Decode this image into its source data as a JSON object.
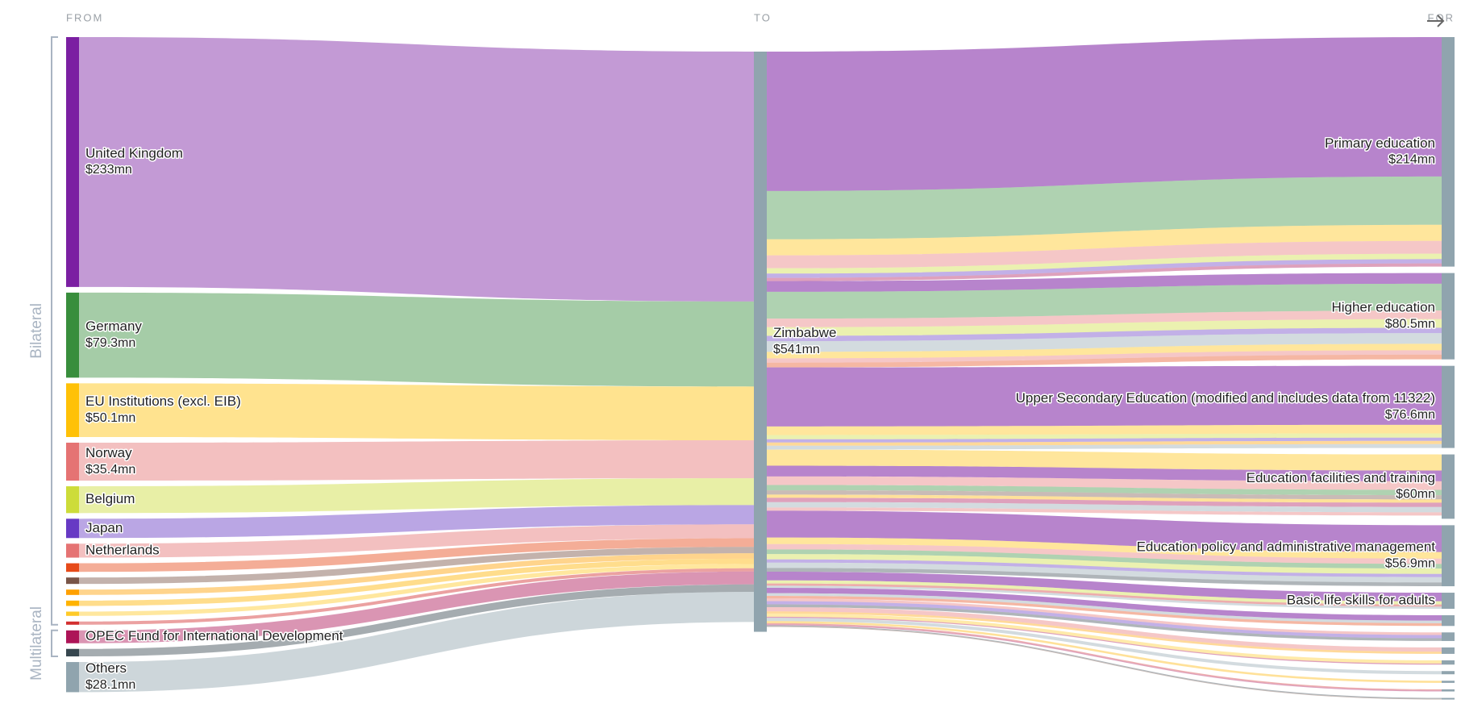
{
  "chart_data": {
    "type": "sankey",
    "headers": [
      "FROM",
      "TO",
      "FOR"
    ],
    "groups": [
      {
        "label": "Bilateral",
        "from": 0,
        "to": 12
      },
      {
        "label": "Multilateral",
        "from": 13,
        "to": 14
      }
    ],
    "sources": [
      {
        "name": "United Kingdom",
        "value": 233,
        "value_label": "$233mn",
        "color": "#7b1fa2"
      },
      {
        "name": "Germany",
        "value": 79.3,
        "value_label": "$79.3mn",
        "color": "#388e3c"
      },
      {
        "name": "EU Institutions (excl. EIB)",
        "value": 50.1,
        "value_label": "$50.1mn",
        "color": "#ffc107"
      },
      {
        "name": "Norway",
        "value": 35.4,
        "value_label": "$35.4mn",
        "color": "#e57373"
      },
      {
        "name": "Belgium",
        "value": 25,
        "color": "#cddc39"
      },
      {
        "name": "Japan",
        "value": 18,
        "color": "#673ac4"
      },
      {
        "name": "Netherlands",
        "value": 13,
        "color": "#e57373"
      },
      {
        "name": null,
        "value": 8,
        "color": "#e64a19"
      },
      {
        "name": null,
        "value": 6,
        "color": "#795548"
      },
      {
        "name": null,
        "value": 5,
        "color": "#ffa000"
      },
      {
        "name": null,
        "value": 5,
        "color": "#ffb300"
      },
      {
        "name": null,
        "value": 4,
        "color": "#ffca28"
      },
      {
        "name": null,
        "value": 3,
        "color": "#d32f2f"
      },
      {
        "name": "OPEC Fund for International Development",
        "value": 12,
        "color": "#ad1457"
      },
      {
        "name": null,
        "value": 7,
        "color": "#37474f"
      },
      {
        "name": "Others",
        "value": 28.1,
        "value_label": "$28.1mn",
        "color": "#90a4ae"
      }
    ],
    "middle": {
      "name": "Zimbabwe",
      "value": 541,
      "value_label": "$541mn",
      "color": "#90a4ae"
    },
    "targets": [
      {
        "name": "Primary education",
        "value": 214,
        "value_label": "$214mn"
      },
      {
        "name": "Higher education",
        "value": 80.5,
        "value_label": "$80.5mn"
      },
      {
        "name": "Upper Secondary Education (modified and includes data from 11322)",
        "value": 76.6,
        "value_label": "$76.6mn"
      },
      {
        "name": "Education facilities and training",
        "value": 60,
        "value_label": "$60mn"
      },
      {
        "name": "Education policy and administrative management",
        "value": 56.9,
        "value_label": "$56.9mn"
      },
      {
        "name": "Basic life skills for adults",
        "value": 15
      },
      {
        "name": null,
        "value": 10
      },
      {
        "name": null,
        "value": 8
      },
      {
        "name": null,
        "value": 6
      },
      {
        "name": null,
        "value": 4
      },
      {
        "name": null,
        "value": 3
      },
      {
        "name": null,
        "value": 2
      },
      {
        "name": null,
        "value": 2
      },
      {
        "name": null,
        "value": 1.5
      }
    ],
    "target_color": "#90a4ae",
    "flows": [
      [
        0,
        0,
        130
      ],
      [
        1,
        0,
        45
      ],
      [
        2,
        0,
        15
      ],
      [
        3,
        0,
        12
      ],
      [
        4,
        0,
        5
      ],
      [
        5,
        0,
        4
      ],
      [
        13,
        0,
        3
      ],
      [
        0,
        1,
        10
      ],
      [
        1,
        1,
        25
      ],
      [
        3,
        1,
        8
      ],
      [
        4,
        1,
        8
      ],
      [
        5,
        1,
        5
      ],
      [
        15,
        1,
        10
      ],
      [
        2,
        1,
        6
      ],
      [
        6,
        1,
        4
      ],
      [
        7,
        1,
        4.5
      ],
      [
        0,
        2,
        55
      ],
      [
        2,
        2,
        8
      ],
      [
        4,
        2,
        4
      ],
      [
        5,
        2,
        3
      ],
      [
        9,
        2,
        3
      ],
      [
        15,
        2,
        3.6
      ],
      [
        2,
        3,
        15
      ],
      [
        0,
        3,
        10
      ],
      [
        3,
        3,
        8
      ],
      [
        1,
        3,
        5
      ],
      [
        8,
        3,
        4
      ],
      [
        10,
        3,
        3
      ],
      [
        13,
        3,
        4
      ],
      [
        15,
        3,
        5
      ],
      [
        6,
        3,
        3
      ],
      [
        0,
        4,
        25
      ],
      [
        2,
        4,
        6.1
      ],
      [
        3,
        4,
        5
      ],
      [
        1,
        4,
        4.3
      ],
      [
        4,
        4,
        5
      ],
      [
        5,
        4,
        3
      ],
      [
        15,
        4,
        5
      ],
      [
        14,
        4,
        3.5
      ],
      [
        0,
        5,
        8
      ],
      [
        4,
        5,
        3
      ],
      [
        12,
        5,
        2
      ],
      [
        15,
        5,
        2
      ],
      [
        0,
        6,
        5
      ],
      [
        15,
        6,
        2.5
      ],
      [
        7,
        6,
        2.5
      ],
      [
        3,
        7,
        2.4
      ],
      [
        5,
        7,
        3
      ],
      [
        14,
        7,
        2.6
      ],
      [
        6,
        8,
        4
      ],
      [
        9,
        8,
        2
      ],
      [
        11,
        9,
        3
      ],
      [
        13,
        9,
        1
      ],
      [
        15,
        10,
        3
      ],
      [
        10,
        11,
        2
      ],
      [
        12,
        12,
        1
      ],
      [
        13,
        12,
        1
      ],
      [
        14,
        13,
        0.9
      ],
      [
        8,
        13,
        0.6
      ]
    ]
  }
}
